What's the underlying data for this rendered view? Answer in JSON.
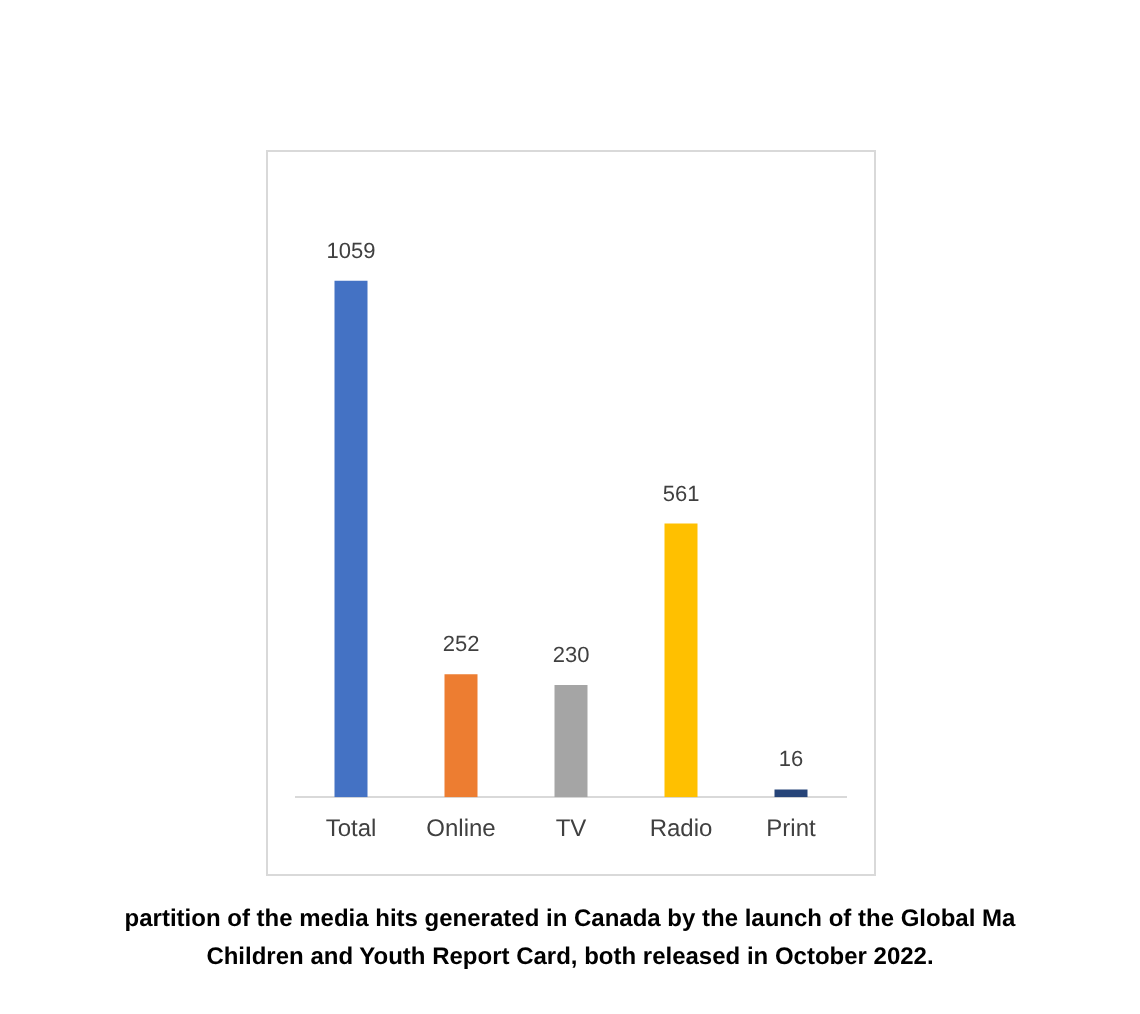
{
  "chart_data": {
    "type": "bar",
    "categories": [
      "Total",
      "Online",
      "TV",
      "Radio",
      "Print"
    ],
    "values": [
      1059,
      252,
      230,
      561,
      16
    ],
    "colors": [
      "#4472c4",
      "#ed7d31",
      "#a5a5a5",
      "#ffc000",
      "#264478"
    ],
    "data_labels": true,
    "grid": false,
    "legend": false,
    "annotations": [
      "partition of the media hits generated in Canada by the launch of the Global Ma",
      "Children and Youth Report Card, both released in October 2022."
    ]
  }
}
